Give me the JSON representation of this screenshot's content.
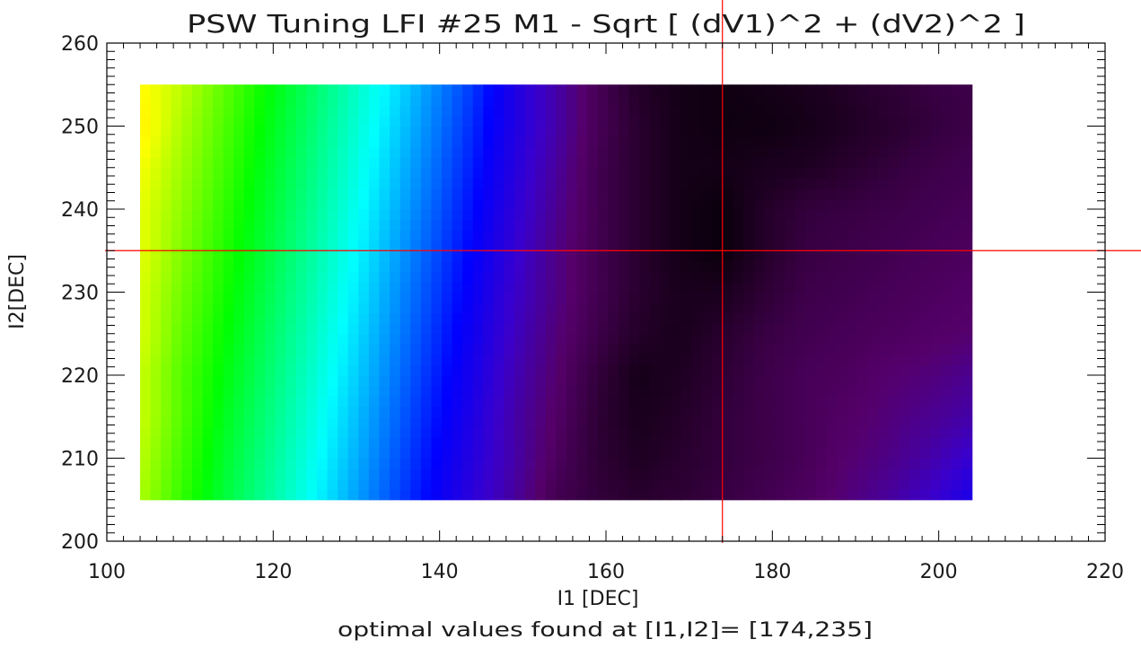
{
  "chart_data": {
    "type": "heatmap",
    "title": "PSW Tuning LFI #25 M1 - Sqrt [ (dV1)^2 + (dV2)^2 ]",
    "xlabel": "I1 [DEC]",
    "ylabel": "I2[DEC]",
    "subtitle": "optimal values found at [I1,I2]= [174,235]",
    "xlim": [
      100,
      220
    ],
    "ylim": [
      200,
      260
    ],
    "x_ticks": [
      100,
      120,
      140,
      160,
      180,
      200,
      220
    ],
    "y_ticks": [
      200,
      210,
      220,
      230,
      240,
      250,
      260
    ],
    "x_grid": [
      104,
      109,
      114,
      119,
      124,
      129,
      134,
      139,
      144,
      149,
      154,
      159,
      164,
      169,
      174,
      179,
      184,
      189,
      194,
      199,
      204
    ],
    "y_grid": [
      205,
      210,
      215,
      220,
      225,
      230,
      235,
      240,
      245,
      250,
      255
    ],
    "values_note": "normalized 0..1, rows follow y_grid, columns follow x_grid",
    "values": [
      [
        0.78,
        0.7,
        0.63,
        0.57,
        0.51,
        0.45,
        0.39,
        0.33,
        0.27,
        0.21,
        0.13,
        0.1,
        0.08,
        0.09,
        0.11,
        0.13,
        0.15,
        0.18,
        0.21,
        0.25,
        0.3
      ],
      [
        0.79,
        0.71,
        0.64,
        0.58,
        0.52,
        0.46,
        0.4,
        0.34,
        0.28,
        0.22,
        0.15,
        0.09,
        0.06,
        0.08,
        0.1,
        0.12,
        0.14,
        0.17,
        0.19,
        0.22,
        0.26
      ],
      [
        0.8,
        0.72,
        0.65,
        0.59,
        0.53,
        0.47,
        0.41,
        0.35,
        0.29,
        0.22,
        0.16,
        0.09,
        0.05,
        0.07,
        0.1,
        0.12,
        0.14,
        0.16,
        0.18,
        0.2,
        0.22
      ],
      [
        0.8,
        0.72,
        0.66,
        0.6,
        0.54,
        0.48,
        0.42,
        0.36,
        0.3,
        0.23,
        0.17,
        0.1,
        0.04,
        0.06,
        0.09,
        0.12,
        0.14,
        0.15,
        0.17,
        0.18,
        0.2
      ],
      [
        0.81,
        0.73,
        0.67,
        0.61,
        0.55,
        0.49,
        0.43,
        0.37,
        0.31,
        0.24,
        0.18,
        0.12,
        0.07,
        0.05,
        0.08,
        0.11,
        0.13,
        0.14,
        0.15,
        0.16,
        0.17
      ],
      [
        0.81,
        0.74,
        0.68,
        0.62,
        0.56,
        0.5,
        0.44,
        0.38,
        0.32,
        0.25,
        0.19,
        0.13,
        0.08,
        0.05,
        0.05,
        0.09,
        0.12,
        0.13,
        0.14,
        0.15,
        0.16
      ],
      [
        0.82,
        0.75,
        0.69,
        0.63,
        0.57,
        0.51,
        0.45,
        0.39,
        0.33,
        0.26,
        0.19,
        0.13,
        0.08,
        0.04,
        0.02,
        0.07,
        0.11,
        0.12,
        0.13,
        0.14,
        0.15
      ],
      [
        0.82,
        0.76,
        0.7,
        0.64,
        0.58,
        0.52,
        0.46,
        0.4,
        0.34,
        0.27,
        0.2,
        0.13,
        0.08,
        0.04,
        0.02,
        0.07,
        0.1,
        0.11,
        0.12,
        0.13,
        0.14
      ],
      [
        0.83,
        0.77,
        0.71,
        0.65,
        0.59,
        0.53,
        0.47,
        0.41,
        0.35,
        0.28,
        0.21,
        0.13,
        0.08,
        0.04,
        0.04,
        0.05,
        0.06,
        0.08,
        0.1,
        0.12,
        0.13
      ],
      [
        0.85,
        0.78,
        0.72,
        0.66,
        0.6,
        0.54,
        0.48,
        0.42,
        0.36,
        0.29,
        0.22,
        0.14,
        0.08,
        0.04,
        0.03,
        0.03,
        0.04,
        0.06,
        0.08,
        0.1,
        0.12
      ],
      [
        0.84,
        0.79,
        0.73,
        0.67,
        0.61,
        0.55,
        0.49,
        0.43,
        0.37,
        0.29,
        0.22,
        0.14,
        0.07,
        0.04,
        0.03,
        0.04,
        0.05,
        0.07,
        0.09,
        0.11,
        0.12
      ]
    ],
    "colormap": [
      "#000000",
      "#2a0030",
      "#55006a",
      "#3a00cc",
      "#0000ff",
      "#007fff",
      "#00ffff",
      "#00ff7f",
      "#00ff00",
      "#7fff00",
      "#ffff00",
      "#ffaa00",
      "#ff0000"
    ],
    "optimum": {
      "x": 174,
      "y": 235
    },
    "marker_color": "#ff0000",
    "grid": false,
    "legend": "none"
  }
}
